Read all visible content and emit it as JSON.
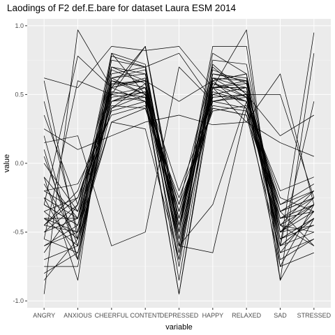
{
  "chart_data": {
    "type": "line",
    "title": "Laodings of F2 def.E.bare for dataset Laura ESM 2014",
    "xlabel": "variable",
    "ylabel": "value",
    "ylim": [
      -1.05,
      1.05
    ],
    "yticks": [
      -1.0,
      -0.5,
      0.0,
      0.5,
      1.0
    ],
    "ytick_labels": [
      "-1.0",
      "-0.5",
      "0.0",
      "0.5",
      "1.0"
    ],
    "categories": [
      "ANGRY",
      "ANXIOUS",
      "CHEERFUL",
      "CONTENT",
      "DEPRESSED",
      "HAPPY",
      "RELAXED",
      "SAD",
      "STRESSED"
    ],
    "grid": true,
    "legend": "none",
    "colors": {
      "panel": "#ebebeb",
      "grid": "#ffffff",
      "line": "#000000",
      "tick_text": "#4d4d4d"
    },
    "series": [
      {
        "values": [
          -0.95,
          0.97,
          0.55,
          0.45,
          -0.95,
          0.5,
          0.55,
          -0.6,
          0.95
        ]
      },
      {
        "values": [
          0.62,
          0.55,
          0.85,
          0.82,
          0.85,
          0.55,
          0.97,
          -0.85,
          0.8
        ]
      },
      {
        "values": [
          0.6,
          -0.55,
          0.75,
          0.7,
          0.8,
          0.45,
          0.5,
          -0.6,
          -0.4
        ]
      },
      {
        "values": [
          -0.1,
          -0.85,
          0.8,
          0.72,
          -0.6,
          0.6,
          0.65,
          -0.85,
          -0.4
        ]
      },
      {
        "values": [
          -0.3,
          0.78,
          0.55,
          0.85,
          -0.45,
          0.55,
          0.3,
          0.65,
          -0.3
        ]
      },
      {
        "values": [
          -0.4,
          -0.4,
          0.8,
          0.5,
          -0.3,
          0.7,
          0.5,
          0.5,
          -0.25
        ]
      },
      {
        "values": [
          -0.75,
          -0.75,
          0.62,
          0.5,
          -0.45,
          0.62,
          0.48,
          -0.45,
          -0.2
        ]
      },
      {
        "values": [
          -0.55,
          0.6,
          0.5,
          0.85,
          -0.55,
          0.55,
          0.55,
          -0.6,
          0.45
        ]
      },
      {
        "values": [
          0.15,
          0.2,
          -0.6,
          -0.5,
          0.7,
          0.45,
          0.5,
          0.2,
          0.35
        ]
      },
      {
        "values": [
          -0.85,
          -0.55,
          0.3,
          0.25,
          -0.7,
          0.75,
          0.72,
          -0.5,
          -0.25
        ]
      },
      {
        "values": [
          0.1,
          -0.7,
          0.6,
          0.55,
          -0.6,
          -0.65,
          0.4,
          -0.75,
          -0.3
        ]
      },
      {
        "values": [
          -0.45,
          -0.5,
          0.78,
          0.7,
          -0.6,
          -0.3,
          0.45,
          -0.55,
          -0.45
        ]
      },
      {
        "values": [
          -0.3,
          -0.45,
          0.45,
          0.48,
          -0.95,
          0.55,
          0.55,
          -0.35,
          -0.25
        ]
      },
      {
        "values": [
          0.35,
          -0.3,
          0.7,
          0.6,
          -0.5,
          0.8,
          0.65,
          -0.45,
          -0.6
        ]
      },
      {
        "values": [
          -0.2,
          -0.35,
          0.55,
          0.6,
          0.45,
          0.6,
          0.4,
          -0.5,
          -0.3
        ]
      },
      {
        "values": [
          0.2,
          -0.7,
          0.55,
          0.85,
          -0.5,
          0.85,
          0.85,
          -0.75,
          -0.65
        ]
      },
      {
        "values": [
          -0.4,
          -0.6,
          0.62,
          0.65,
          -0.5,
          0.68,
          0.58,
          -0.4,
          -0.35
        ]
      },
      {
        "values": [
          -0.6,
          -0.45,
          0.45,
          0.55,
          -0.2,
          0.45,
          0.4,
          -0.3,
          -0.15
        ]
      },
      {
        "values": [
          -0.25,
          -0.4,
          0.4,
          0.5,
          -0.35,
          0.5,
          0.45,
          -0.55,
          -0.4
        ]
      },
      {
        "values": [
          -0.5,
          -0.3,
          0.58,
          0.6,
          -0.4,
          0.58,
          0.52,
          -0.45,
          -0.3
        ]
      },
      {
        "values": [
          0.45,
          -0.5,
          0.3,
          0.4,
          -0.25,
          0.4,
          0.35,
          -0.65,
          -0.55
        ]
      },
      {
        "values": [
          -0.35,
          -0.25,
          0.5,
          0.45,
          -0.45,
          0.65,
          0.6,
          -0.5,
          -0.45
        ]
      },
      {
        "values": [
          -0.7,
          -0.6,
          0.4,
          0.58,
          -0.65,
          0.48,
          0.5,
          -0.35,
          -0.2
        ]
      },
      {
        "values": [
          -0.15,
          -0.55,
          0.65,
          0.7,
          -0.55,
          0.55,
          0.6,
          -0.6,
          -0.5
        ]
      },
      {
        "values": [
          -0.45,
          -0.2,
          0.52,
          0.48,
          -0.4,
          0.52,
          0.45,
          -0.25,
          -0.35
        ]
      },
      {
        "values": [
          0.0,
          -0.35,
          0.6,
          0.55,
          -0.75,
          0.62,
          0.55,
          -0.4,
          -0.25
        ]
      },
      {
        "values": [
          -0.55,
          -0.65,
          0.48,
          0.52,
          -0.6,
          0.45,
          0.48,
          -0.55,
          -0.4
        ]
      },
      {
        "values": [
          -0.2,
          -0.15,
          0.35,
          0.42,
          -0.3,
          0.38,
          0.42,
          -0.2,
          -0.1
        ]
      },
      {
        "values": [
          -0.4,
          -0.5,
          0.55,
          0.62,
          -0.85,
          0.6,
          0.65,
          -0.7,
          -0.55
        ]
      },
      {
        "values": [
          -0.3,
          -0.45,
          0.68,
          0.58,
          -0.5,
          0.72,
          0.5,
          -0.5,
          -0.3
        ]
      },
      {
        "values": [
          -0.65,
          -0.3,
          0.42,
          0.4,
          -0.35,
          0.42,
          0.38,
          -0.35,
          -0.6
        ]
      },
      {
        "values": [
          0.05,
          -0.6,
          0.5,
          0.55,
          -0.45,
          0.5,
          0.55,
          -0.65,
          -0.35
        ]
      },
      {
        "values": [
          -0.5,
          -0.4,
          0.6,
          0.5,
          -0.55,
          0.58,
          0.48,
          -0.3,
          -0.2
        ]
      },
      {
        "values": [
          -0.25,
          -0.7,
          0.7,
          0.65,
          -0.65,
          0.65,
          0.62,
          -0.55,
          -0.45
        ]
      },
      {
        "values": [
          -0.45,
          -0.25,
          0.38,
          0.45,
          -0.4,
          0.4,
          0.35,
          -0.4,
          -0.3
        ]
      },
      {
        "values": [
          -0.35,
          -0.55,
          0.57,
          0.6,
          -0.5,
          0.55,
          0.58,
          -0.45,
          -0.5
        ]
      },
      {
        "values": [
          0.25,
          0.1,
          0.2,
          0.3,
          0.35,
          0.28,
          0.3,
          0.15,
          0.05
        ]
      },
      {
        "values": [
          -0.8,
          -0.65,
          0.52,
          0.48,
          -0.7,
          0.55,
          0.45,
          -0.6,
          -0.4
        ]
      },
      {
        "values": [
          -0.1,
          -0.4,
          0.45,
          0.52,
          -0.35,
          0.48,
          0.5,
          -0.35,
          -0.25
        ]
      },
      {
        "values": [
          -0.6,
          -0.5,
          0.62,
          0.68,
          -0.6,
          0.62,
          0.6,
          -0.5,
          -0.35
        ]
      }
    ]
  }
}
